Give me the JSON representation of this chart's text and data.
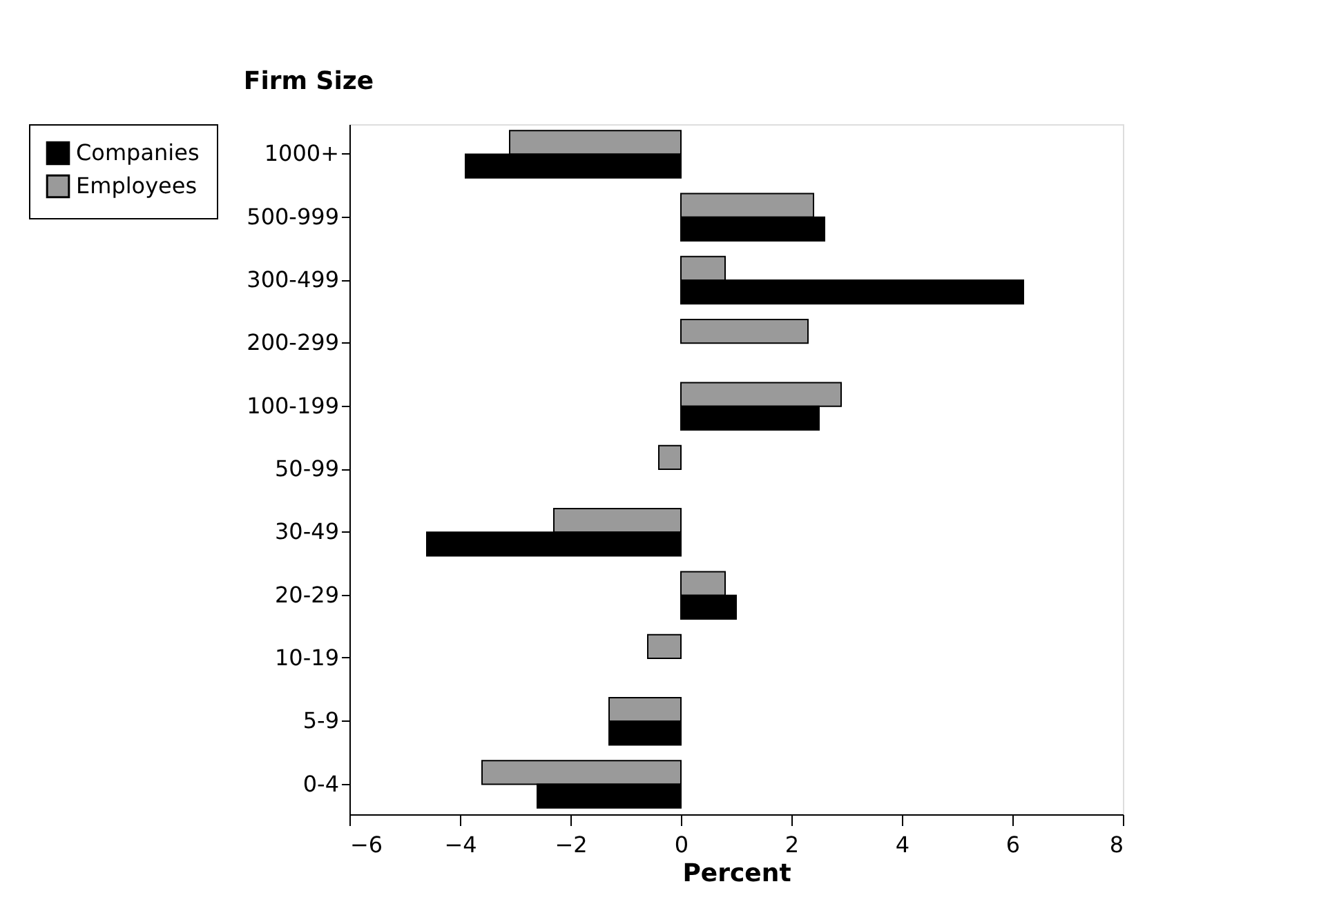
{
  "chart_data": {
    "type": "bar",
    "orientation": "horizontal",
    "ylabel": "Firm Size",
    "xlabel": "Percent",
    "categories": [
      "1000+",
      "500-999",
      "300-499",
      "200-299",
      "100-199",
      "50-99",
      "30-49",
      "20-29",
      "10-19",
      "5-9",
      "0-4"
    ],
    "series": [
      {
        "name": "Employees",
        "color": "#9a9a9a",
        "values": [
          -3.1,
          2.4,
          0.8,
          2.3,
          2.9,
          -0.4,
          -2.3,
          0.8,
          -0.6,
          -1.3,
          -3.6
        ]
      },
      {
        "name": "Companies",
        "color": "#000000",
        "values": [
          -3.9,
          2.6,
          6.2,
          null,
          2.5,
          null,
          -4.6,
          1.0,
          null,
          -1.3,
          -2.6
        ]
      }
    ],
    "xlim": [
      -6,
      8
    ],
    "xticks": [
      -6,
      -4,
      -2,
      0,
      2,
      4,
      6,
      8
    ],
    "grid": false,
    "legend": "left"
  }
}
